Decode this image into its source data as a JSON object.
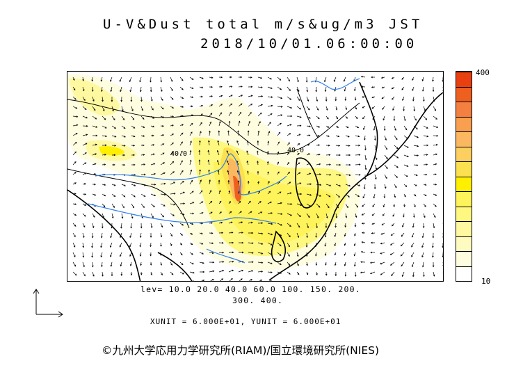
{
  "title": {
    "line1": "U-V&Dust total m/s&ug/m3 JST",
    "line2": "2018/10/01.06:00:00"
  },
  "colorbar": {
    "max_label": "400",
    "min_label": "10",
    "colors": [
      "#ffffff",
      "#fefde0",
      "#fefbc0",
      "#fef9a0",
      "#fef780",
      "#fef35a",
      "#fef000",
      "#fde050",
      "#fcd060",
      "#fbb860",
      "#f8a050",
      "#f38040",
      "#ee6020",
      "#e84010"
    ]
  },
  "map": {
    "contour_labels": [
      "40.0",
      "40.0"
    ],
    "colors": {
      "coast": "#000000",
      "river": "#2f7ff0",
      "dust_low": "#fefbc0",
      "dust_mid": "#fef000",
      "dust_high": "#ee6020"
    }
  },
  "legend": {
    "levels_line1": "lev= 10.0 20.0 40.0 60.0 100. 150. 200.",
    "levels_line2": "300. 400."
  },
  "units": "XUNIT = 6.000E+01, YUNIT = 6.000E+01",
  "credit": "©九州大学応用力学研究所(RIAM)/国立環境研究所(NIES)"
}
